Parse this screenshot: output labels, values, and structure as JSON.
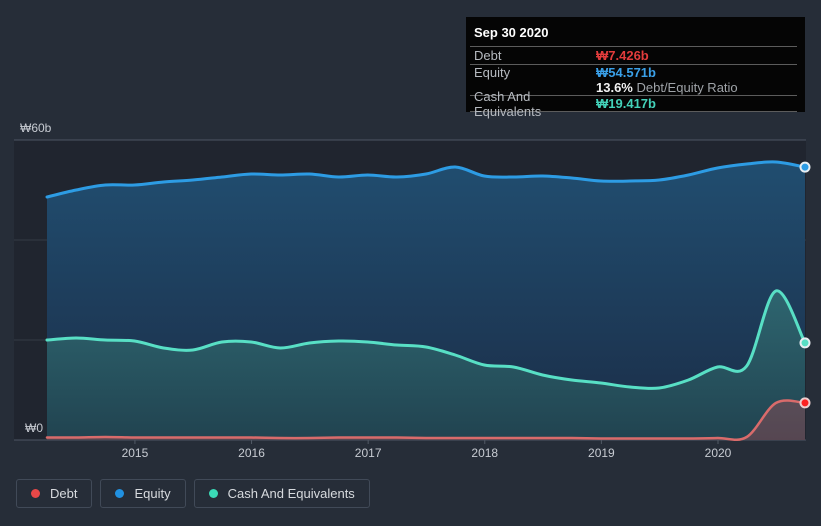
{
  "y_axis": {
    "top_label": "₩60b",
    "bottom_label": "₩0"
  },
  "x_axis": {
    "ticks": [
      "2015",
      "2016",
      "2017",
      "2018",
      "2019",
      "2020"
    ]
  },
  "tooltip": {
    "title": "Sep 30 2020",
    "debt_label": "Debt",
    "debt_value": "₩7.426b",
    "debt_color": "#e23c3c",
    "equity_label": "Equity",
    "equity_value": "₩54.571b",
    "equity_color": "#3aa0e8",
    "ratio_pct": "13.6%",
    "ratio_text": " Debt/Equity Ratio",
    "cash_label": "Cash And Equivalents",
    "cash_value": "₩19.417b",
    "cash_color": "#43d1b9"
  },
  "legend": {
    "items": [
      {
        "label": "Debt",
        "color": "#e84848"
      },
      {
        "label": "Equity",
        "color": "#2191e1"
      },
      {
        "label": "Cash And Equivalents",
        "color": "#3adbb7"
      }
    ]
  },
  "chart_data": {
    "type": "area",
    "x": [
      "2014 Q1",
      "2014 Q2",
      "2014 Q3",
      "2014 Q4",
      "2015 Q1",
      "2015 Q2",
      "2015 Q3",
      "2015 Q4",
      "2016 Q1",
      "2016 Q2",
      "2016 Q3",
      "2016 Q4",
      "2017 Q1",
      "2017 Q2",
      "2017 Q3",
      "2017 Q4",
      "2018 Q1",
      "2018 Q2",
      "2018 Q3",
      "2018 Q4",
      "2019 Q1",
      "2019 Q2",
      "2019 Q3",
      "2019 Q4",
      "2020 Q1",
      "2020 Q2",
      "2020 Q3"
    ],
    "x_tick_labels": [
      "2015",
      "2016",
      "2017",
      "2018",
      "2019",
      "2020"
    ],
    "series": [
      {
        "name": "Debt",
        "color": "#d96b6b",
        "marker_color": "#fb2222",
        "values": [
          0.5,
          0.5,
          0.6,
          0.5,
          0.5,
          0.5,
          0.5,
          0.5,
          0.4,
          0.4,
          0.5,
          0.5,
          0.5,
          0.4,
          0.4,
          0.4,
          0.4,
          0.4,
          0.4,
          0.3,
          0.3,
          0.3,
          0.3,
          0.4,
          0.6,
          7.4,
          7.426
        ]
      },
      {
        "name": "Equity",
        "color": "#2d9ce4",
        "marker_color": "#2d9ce4",
        "values": [
          48.6,
          50.0,
          51.0,
          51.0,
          51.6,
          52.0,
          52.6,
          53.2,
          53.0,
          53.2,
          52.6,
          53.0,
          52.6,
          53.2,
          54.6,
          52.8,
          52.6,
          52.8,
          52.4,
          51.8,
          51.8,
          52.0,
          53.0,
          54.4,
          55.2,
          55.6,
          54.571
        ]
      },
      {
        "name": "Cash And Equivalents",
        "color": "#58dfc5",
        "marker_color": "#58dfc5",
        "values": [
          20.0,
          20.4,
          20.0,
          19.8,
          18.4,
          18.0,
          19.6,
          19.6,
          18.4,
          19.4,
          19.8,
          19.6,
          19.0,
          18.6,
          17.0,
          15.0,
          14.6,
          13.0,
          12.0,
          11.4,
          10.6,
          10.4,
          12.0,
          14.6,
          14.8,
          29.8,
          19.417
        ]
      }
    ],
    "title": "",
    "xlabel": "",
    "ylabel": "",
    "ylim": [
      0,
      60
    ],
    "y_tick_values": [
      0,
      20,
      40,
      60
    ],
    "grid": true,
    "legend_position": "bottom",
    "last_point_date": "Sep 30 2020"
  }
}
